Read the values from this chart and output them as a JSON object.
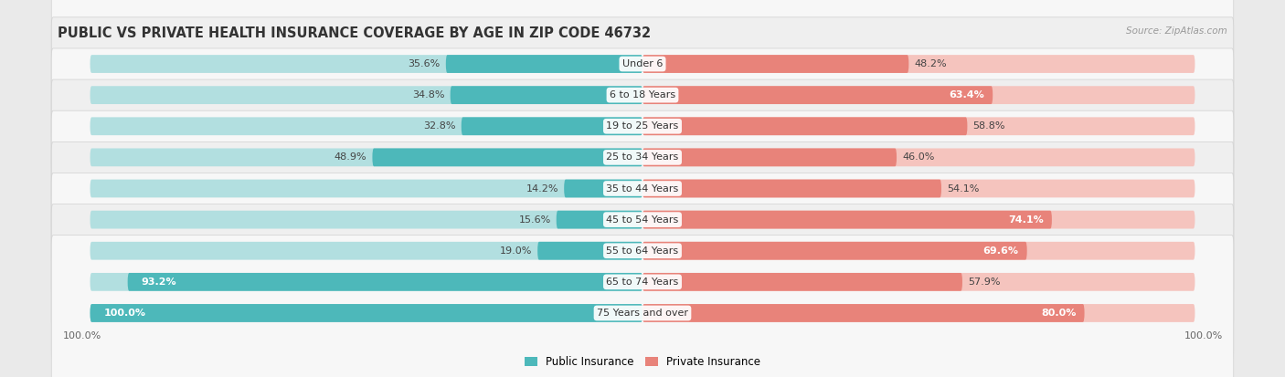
{
  "title": "PUBLIC VS PRIVATE HEALTH INSURANCE COVERAGE BY AGE IN ZIP CODE 46732",
  "source": "Source: ZipAtlas.com",
  "categories": [
    "Under 6",
    "6 to 18 Years",
    "19 to 25 Years",
    "25 to 34 Years",
    "35 to 44 Years",
    "45 to 54 Years",
    "55 to 64 Years",
    "65 to 74 Years",
    "75 Years and over"
  ],
  "public_values": [
    35.6,
    34.8,
    32.8,
    48.9,
    14.2,
    15.6,
    19.0,
    93.2,
    100.0
  ],
  "private_values": [
    48.2,
    63.4,
    58.8,
    46.0,
    54.1,
    74.1,
    69.6,
    57.9,
    80.0
  ],
  "public_color": "#4db8ba",
  "private_color": "#e8837a",
  "public_light_color": "#b2dfe0",
  "private_light_color": "#f5c4be",
  "background_color": "#eaeaea",
  "row_color_even": "#f7f7f7",
  "row_color_odd": "#efefef",
  "bar_height": 0.58,
  "max_value": 100.0,
  "title_fontsize": 10.5,
  "label_fontsize": 8.0,
  "category_fontsize": 8.0,
  "legend_fontsize": 8.5,
  "source_fontsize": 7.5,
  "private_inside_threshold": 60.0,
  "public_inside_threshold": 85.0
}
